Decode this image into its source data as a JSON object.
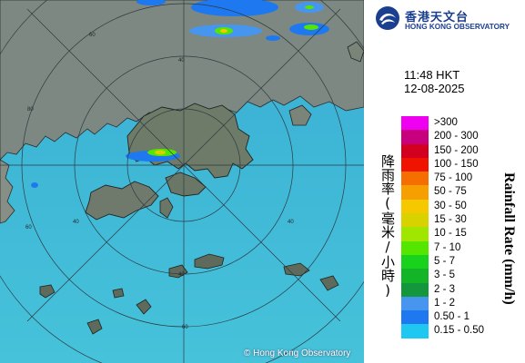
{
  "map": {
    "copyright": "© Hong Kong Observatory",
    "ring_labels": [
      "40",
      "60",
      "80",
      "40",
      "60",
      "40",
      "40",
      "60"
    ],
    "colors": {
      "sea": "#3fb8d8",
      "land": "#7f8a83",
      "rings": "#2e3a40"
    }
  },
  "header": {
    "logo_cn": "香港天文台",
    "logo_en": "HONG KONG OBSERVATORY",
    "logo_icon": "hko-logo-icon"
  },
  "timestamp": {
    "time": "11:48 HKT",
    "date": "12-08-2025"
  },
  "legend": {
    "title_cn": "降雨率(毫米/小時)",
    "title_en": "Rainfall Rate (mm/h)",
    "items": [
      {
        "range": ">300",
        "color": "#f000f0"
      },
      {
        "range": "200 - 300",
        "color": "#c8007d"
      },
      {
        "range": "150 - 200",
        "color": "#d2001e"
      },
      {
        "range": "100 - 150",
        "color": "#f01400"
      },
      {
        "range": "75 - 100",
        "color": "#f56e00"
      },
      {
        "range": "50 - 75",
        "color": "#f5a000"
      },
      {
        "range": "30 - 50",
        "color": "#f5c800"
      },
      {
        "range": "15 - 30",
        "color": "#d7d200"
      },
      {
        "range": "10 - 15",
        "color": "#a0e600"
      },
      {
        "range": "7 - 10",
        "color": "#55e600"
      },
      {
        "range": "5 - 7",
        "color": "#19d21e"
      },
      {
        "range": "3 - 5",
        "color": "#14b428"
      },
      {
        "range": "2 - 3",
        "color": "#14963c"
      },
      {
        "range": "1 - 2",
        "color": "#4696f0"
      },
      {
        "range": "0.50 - 1",
        "color": "#1e78f0"
      },
      {
        "range": "0.15 - 0.50",
        "color": "#1ec8f0"
      }
    ]
  }
}
